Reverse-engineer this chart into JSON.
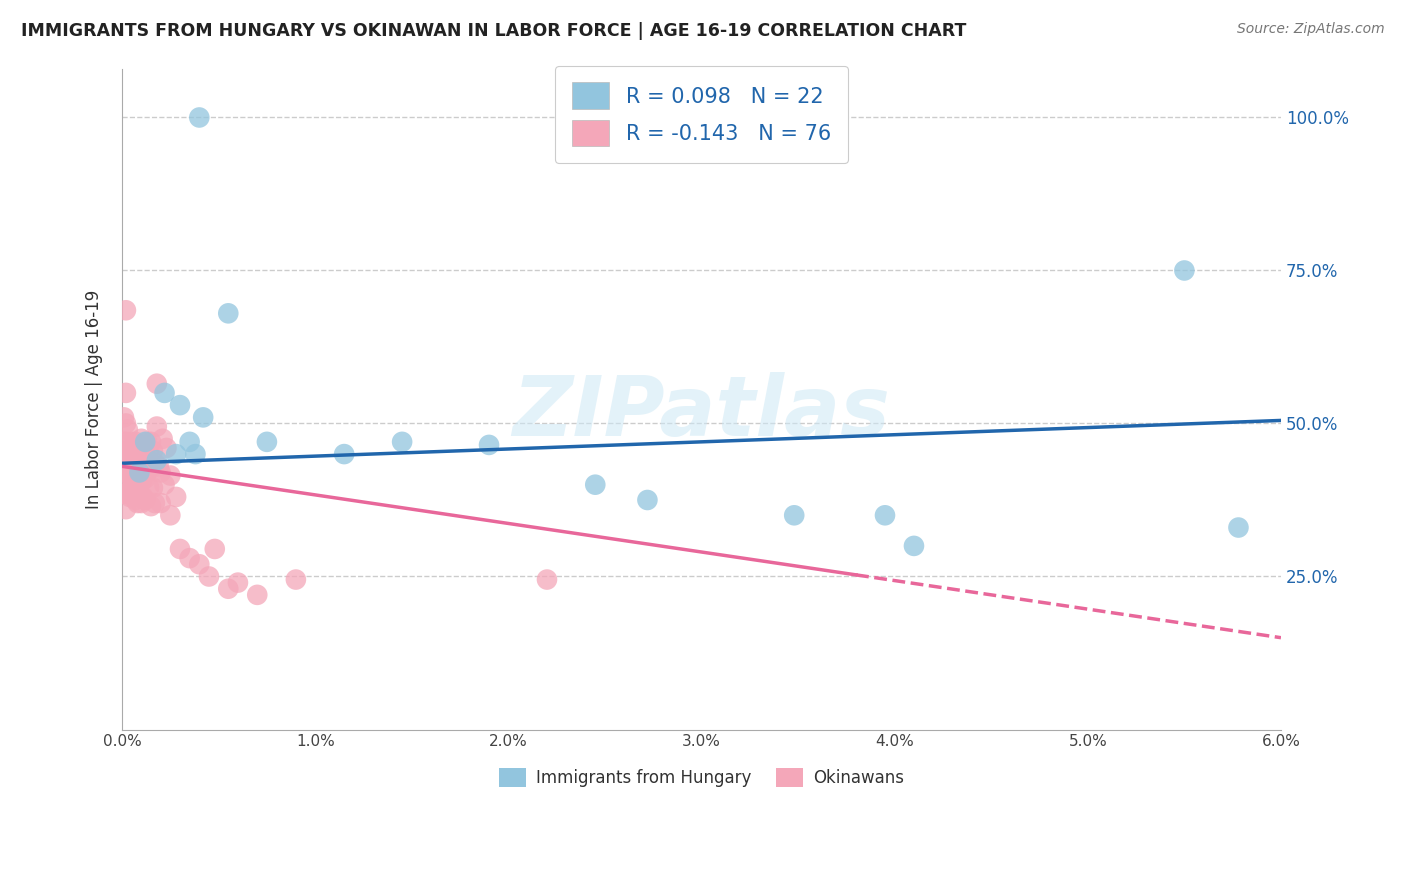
{
  "title": "IMMIGRANTS FROM HUNGARY VS OKINAWAN IN LABOR FORCE | AGE 16-19 CORRELATION CHART",
  "source": "Source: ZipAtlas.com",
  "ylabel": "In Labor Force | Age 16-19",
  "xlim": [
    0.0,
    6.0
  ],
  "ylim": [
    0.0,
    108.0
  ],
  "watermark": "ZIPatlas",
  "legend_r1": "0.098",
  "legend_n1": "22",
  "legend_r2": "-0.143",
  "legend_n2": "76",
  "legend_label1": "Immigrants from Hungary",
  "legend_label2": "Okinawans",
  "blue_color": "#92c5de",
  "pink_color": "#f4a7b9",
  "blue_line_color": "#2166ac",
  "pink_line_color": "#e8679a",
  "grid_color": "#cccccc",
  "blue_line_x0": 0.0,
  "blue_line_y0": 43.5,
  "blue_line_x1": 6.0,
  "blue_line_y1": 50.5,
  "pink_line_x0": 0.0,
  "pink_line_y0": 43.0,
  "pink_line_x1": 6.0,
  "pink_line_y1": 15.0,
  "pink_solid_end": 3.8,
  "blue_dots_x": [
    0.4,
    0.12,
    0.09,
    0.18,
    0.22,
    0.3,
    0.28,
    0.38,
    0.35,
    0.55,
    0.75,
    1.15,
    1.45,
    1.9,
    2.45,
    2.72,
    3.48,
    3.95,
    4.1,
    5.5,
    5.78,
    0.42
  ],
  "blue_dots_y": [
    100.0,
    47.0,
    42.0,
    44.0,
    55.0,
    53.0,
    45.0,
    45.0,
    47.0,
    68.0,
    47.0,
    45.0,
    47.0,
    46.5,
    40.0,
    37.5,
    35.0,
    35.0,
    30.0,
    75.0,
    33.0,
    51.0
  ],
  "pink_dots_x": [
    0.01,
    0.01,
    0.01,
    0.01,
    0.01,
    0.02,
    0.02,
    0.02,
    0.02,
    0.02,
    0.02,
    0.02,
    0.02,
    0.03,
    0.03,
    0.03,
    0.03,
    0.04,
    0.04,
    0.04,
    0.05,
    0.05,
    0.05,
    0.06,
    0.06,
    0.06,
    0.07,
    0.07,
    0.07,
    0.07,
    0.08,
    0.08,
    0.08,
    0.09,
    0.09,
    0.1,
    0.1,
    0.1,
    0.1,
    0.11,
    0.11,
    0.12,
    0.12,
    0.12,
    0.13,
    0.13,
    0.14,
    0.14,
    0.15,
    0.15,
    0.15,
    0.16,
    0.16,
    0.17,
    0.17,
    0.18,
    0.18,
    0.19,
    0.2,
    0.2,
    0.21,
    0.22,
    0.23,
    0.25,
    0.25,
    0.28,
    0.3,
    0.35,
    0.4,
    0.45,
    0.48,
    0.55,
    0.6,
    0.7,
    0.9,
    2.2
  ],
  "pink_dots_y": [
    42.0,
    44.5,
    47.0,
    51.0,
    38.5,
    36.0,
    38.5,
    42.0,
    44.5,
    47.0,
    50.0,
    55.0,
    68.5,
    39.0,
    42.0,
    45.5,
    49.0,
    38.0,
    41.5,
    45.5,
    39.5,
    43.0,
    47.0,
    38.5,
    42.0,
    46.0,
    37.5,
    40.5,
    43.5,
    47.0,
    37.0,
    40.5,
    44.0,
    38.5,
    43.0,
    37.0,
    40.5,
    44.0,
    47.5,
    38.0,
    43.0,
    37.5,
    41.0,
    45.0,
    42.0,
    47.0,
    39.5,
    45.5,
    36.5,
    42.5,
    47.0,
    39.5,
    45.5,
    37.0,
    43.5,
    49.5,
    56.5,
    43.0,
    37.0,
    42.0,
    47.5,
    40.0,
    46.0,
    35.0,
    41.5,
    38.0,
    29.5,
    28.0,
    27.0,
    25.0,
    29.5,
    23.0,
    24.0,
    22.0,
    24.5,
    24.5
  ]
}
